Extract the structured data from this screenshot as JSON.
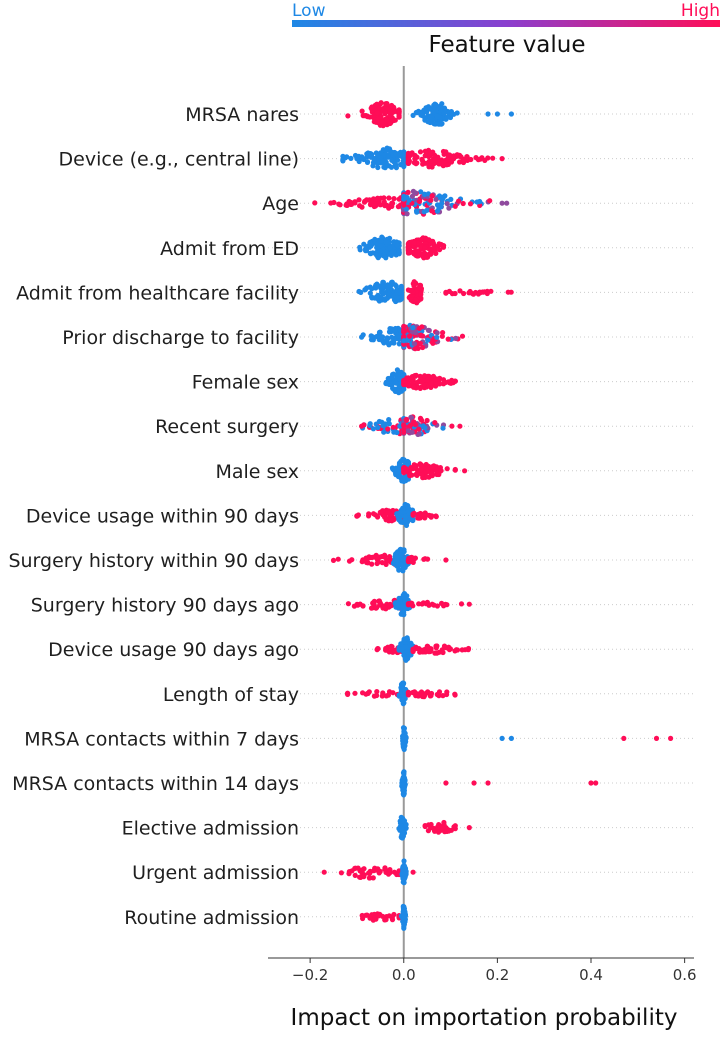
{
  "colors": {
    "low": "#1e88e5",
    "high": "#ff0d57",
    "zero_line": "#999999",
    "grid": "#cccccc"
  },
  "chart_data": {
    "type": "scatter",
    "subtype": "shap-beeswarm",
    "xlabel": "Impact on importation probability",
    "xlim": [
      -0.29,
      0.62
    ],
    "xticks": [
      -0.2,
      0.0,
      0.2,
      0.4,
      0.6
    ],
    "xtick_labels": [
      "−0.2",
      "0.0",
      "0.2",
      "0.4",
      "0.6"
    ],
    "colorbar": {
      "title": "Feature value",
      "low_label": "Low",
      "high_label": "High",
      "placement": "top"
    },
    "features": [
      {
        "name": "MRSA nares",
        "clusters": [
          {
            "xmin": -0.12,
            "xmax": -0.01,
            "center": -0.045,
            "width": 0.022,
            "n": 110,
            "color": "high",
            "h": 1.0
          },
          {
            "xmin": 0.02,
            "xmax": 0.12,
            "center": 0.07,
            "width": 0.02,
            "n": 90,
            "color": "low",
            "h": 1.0
          }
        ],
        "points": [
          {
            "x": 0.18,
            "c": "low"
          },
          {
            "x": 0.2,
            "c": "low"
          },
          {
            "x": 0.23,
            "c": "low"
          }
        ]
      },
      {
        "name": "Device (e.g., central line)",
        "clusters": [
          {
            "xmin": -0.13,
            "xmax": 0.0,
            "center": -0.03,
            "width": 0.04,
            "n": 110,
            "color": "low",
            "h": 0.9
          },
          {
            "xmin": 0.01,
            "xmax": 0.19,
            "center": 0.06,
            "width": 0.05,
            "n": 110,
            "color": "high",
            "h": 0.7
          }
        ],
        "points": [
          {
            "x": 0.21,
            "c": "high"
          }
        ]
      },
      {
        "name": "Age",
        "clusters": [
          {
            "xmin": -0.19,
            "xmax": 0.0,
            "center": -0.03,
            "width": 0.06,
            "n": 90,
            "color": "high",
            "h": 0.5
          },
          {
            "xmin": 0.0,
            "xmax": 0.2,
            "center": 0.03,
            "width": 0.06,
            "n": 150,
            "color": "mix",
            "h": 1.0
          }
        ],
        "points": [
          {
            "x": 0.21,
            "c": "mid"
          },
          {
            "x": 0.22,
            "c": "mid"
          }
        ]
      },
      {
        "name": "Admit from ED",
        "clusters": [
          {
            "xmin": -0.11,
            "xmax": -0.01,
            "center": -0.04,
            "width": 0.025,
            "n": 110,
            "color": "low",
            "h": 1.0
          },
          {
            "xmin": 0.01,
            "xmax": 0.11,
            "center": 0.04,
            "width": 0.025,
            "n": 100,
            "color": "high",
            "h": 0.85
          }
        ],
        "points": []
      },
      {
        "name": "Admit from healthcare facility",
        "clusters": [
          {
            "xmin": -0.1,
            "xmax": -0.005,
            "center": -0.035,
            "width": 0.03,
            "n": 100,
            "color": "low",
            "h": 0.9
          },
          {
            "xmin": 0.01,
            "xmax": 0.045,
            "center": 0.025,
            "width": 0.01,
            "n": 50,
            "color": "high",
            "h": 1.0
          },
          {
            "xmin": 0.09,
            "xmax": 0.23,
            "center": 0.15,
            "width": 0.05,
            "n": 25,
            "color": "high",
            "h": 0.15
          }
        ],
        "points": []
      },
      {
        "name": "Prior discharge to facility",
        "clusters": [
          {
            "xmin": -0.09,
            "xmax": 0.0,
            "center": -0.015,
            "width": 0.03,
            "n": 80,
            "color": "low",
            "h": 0.8
          },
          {
            "xmin": 0.0,
            "xmax": 0.16,
            "center": 0.02,
            "width": 0.04,
            "n": 130,
            "color": "mixh",
            "h": 1.0
          }
        ],
        "points": []
      },
      {
        "name": "Female sex",
        "clusters": [
          {
            "xmin": -0.05,
            "xmax": 0.0,
            "center": -0.012,
            "width": 0.012,
            "n": 70,
            "color": "low",
            "h": 1.0
          },
          {
            "xmin": 0.0,
            "xmax": 0.11,
            "center": 0.04,
            "width": 0.03,
            "n": 90,
            "color": "high",
            "h": 0.6
          }
        ],
        "points": []
      },
      {
        "name": "Recent surgery",
        "clusters": [
          {
            "xmin": -0.09,
            "xmax": 0.0,
            "center": -0.02,
            "width": 0.03,
            "n": 60,
            "color": "mixl",
            "h": 0.7
          },
          {
            "xmin": 0.0,
            "xmax": 0.11,
            "center": 0.02,
            "width": 0.03,
            "n": 80,
            "color": "mixh",
            "h": 0.8
          }
        ],
        "points": [
          {
            "x": -0.09,
            "c": "high"
          },
          {
            "x": 0.12,
            "c": "high"
          }
        ]
      },
      {
        "name": "Male sex",
        "clusters": [
          {
            "xmin": -0.06,
            "xmax": 0.01,
            "center": 0.0,
            "width": 0.012,
            "n": 70,
            "color": "low",
            "h": 1.0
          },
          {
            "xmin": 0.0,
            "xmax": 0.11,
            "center": 0.04,
            "width": 0.03,
            "n": 80,
            "color": "high",
            "h": 0.6
          }
        ],
        "points": [
          {
            "x": 0.13,
            "c": "high"
          }
        ]
      },
      {
        "name": "Device usage within 90 days",
        "clusters": [
          {
            "xmin": -0.1,
            "xmax": 0.0,
            "center": -0.03,
            "width": 0.03,
            "n": 60,
            "color": "high",
            "h": 0.45
          },
          {
            "xmin": -0.03,
            "xmax": 0.03,
            "center": 0.005,
            "width": 0.01,
            "n": 70,
            "color": "low",
            "h": 1.0
          },
          {
            "xmin": 0.02,
            "xmax": 0.09,
            "center": 0.04,
            "width": 0.02,
            "n": 25,
            "color": "high",
            "h": 0.25
          }
        ],
        "points": []
      },
      {
        "name": "Surgery history within 90 days",
        "clusters": [
          {
            "xmin": -0.15,
            "xmax": 0.0,
            "center": -0.04,
            "width": 0.04,
            "n": 60,
            "color": "high",
            "h": 0.45
          },
          {
            "xmin": -0.03,
            "xmax": 0.02,
            "center": -0.005,
            "width": 0.01,
            "n": 70,
            "color": "low",
            "h": 1.0
          },
          {
            "xmin": 0.01,
            "xmax": 0.06,
            "center": 0.025,
            "width": 0.015,
            "n": 15,
            "color": "high",
            "h": 0.25
          }
        ],
        "points": [
          {
            "x": 0.09,
            "c": "high"
          }
        ]
      },
      {
        "name": "Surgery history 90 days ago",
        "clusters": [
          {
            "xmin": -0.14,
            "xmax": -0.005,
            "center": -0.04,
            "width": 0.04,
            "n": 50,
            "color": "high",
            "h": 0.4
          },
          {
            "xmin": -0.02,
            "xmax": 0.02,
            "center": 0.0,
            "width": 0.008,
            "n": 60,
            "color": "low",
            "h": 1.0
          },
          {
            "xmin": 0.01,
            "xmax": 0.14,
            "center": 0.05,
            "width": 0.04,
            "n": 20,
            "color": "high",
            "h": 0.2
          }
        ],
        "points": []
      },
      {
        "name": "Device usage 90 days ago",
        "clusters": [
          {
            "xmin": -0.06,
            "xmax": 0.0,
            "center": -0.02,
            "width": 0.02,
            "n": 25,
            "color": "high",
            "h": 0.3
          },
          {
            "xmin": -0.01,
            "xmax": 0.03,
            "center": 0.005,
            "width": 0.008,
            "n": 70,
            "color": "low",
            "h": 1.0
          },
          {
            "xmin": 0.02,
            "xmax": 0.14,
            "center": 0.06,
            "width": 0.035,
            "n": 50,
            "color": "high",
            "h": 0.35
          }
        ],
        "points": []
      },
      {
        "name": "Length of stay",
        "clusters": [
          {
            "xmin": -0.12,
            "xmax": -0.005,
            "center": -0.04,
            "width": 0.04,
            "n": 25,
            "color": "high",
            "h": 0.25
          },
          {
            "xmin": -0.015,
            "xmax": 0.01,
            "center": -0.002,
            "width": 0.004,
            "n": 40,
            "color": "low",
            "h": 1.0
          },
          {
            "xmin": 0.01,
            "xmax": 0.14,
            "center": 0.05,
            "width": 0.04,
            "n": 30,
            "color": "high",
            "h": 0.25
          }
        ],
        "points": []
      },
      {
        "name": "MRSA contacts within 7 days",
        "clusters": [
          {
            "xmin": -0.005,
            "xmax": 0.005,
            "center": 0.0,
            "width": 0.002,
            "n": 50,
            "color": "low",
            "h": 1.0
          }
        ],
        "points": [
          {
            "x": 0.21,
            "c": "low"
          },
          {
            "x": 0.23,
            "c": "low"
          },
          {
            "x": 0.47,
            "c": "high"
          },
          {
            "x": 0.54,
            "c": "high"
          },
          {
            "x": 0.57,
            "c": "high"
          }
        ]
      },
      {
        "name": "MRSA contacts within 14 days",
        "clusters": [
          {
            "xmin": -0.005,
            "xmax": 0.005,
            "center": 0.0,
            "width": 0.002,
            "n": 50,
            "color": "low",
            "h": 1.0
          }
        ],
        "points": [
          {
            "x": 0.09,
            "c": "high"
          },
          {
            "x": 0.15,
            "c": "high"
          },
          {
            "x": 0.18,
            "c": "high"
          },
          {
            "x": 0.4,
            "c": "high"
          },
          {
            "x": 0.41,
            "c": "high"
          }
        ]
      },
      {
        "name": "Elective admission",
        "clusters": [
          {
            "xmin": -0.015,
            "xmax": 0.005,
            "center": -0.003,
            "width": 0.004,
            "n": 45,
            "color": "low",
            "h": 1.0
          },
          {
            "xmin": 0.045,
            "xmax": 0.11,
            "center": 0.075,
            "width": 0.02,
            "n": 35,
            "color": "high",
            "h": 0.5
          }
        ],
        "points": [
          {
            "x": 0.14,
            "c": "high"
          }
        ]
      },
      {
        "name": "Urgent admission",
        "clusters": [
          {
            "xmin": -0.15,
            "xmax": -0.01,
            "center": -0.07,
            "width": 0.04,
            "n": 45,
            "color": "high",
            "h": 0.5
          },
          {
            "xmin": -0.005,
            "xmax": 0.005,
            "center": 0.0,
            "width": 0.002,
            "n": 40,
            "color": "low",
            "h": 1.0
          }
        ],
        "points": [
          {
            "x": -0.17,
            "c": "high"
          },
          {
            "x": -0.02,
            "c": "high"
          },
          {
            "x": 0.02,
            "c": "high"
          }
        ]
      },
      {
        "name": "Routine admission",
        "clusters": [
          {
            "xmin": -0.1,
            "xmax": -0.01,
            "center": -0.05,
            "width": 0.03,
            "n": 30,
            "color": "high",
            "h": 0.35
          },
          {
            "xmin": -0.005,
            "xmax": 0.005,
            "center": 0.0,
            "width": 0.002,
            "n": 40,
            "color": "low",
            "h": 1.0
          }
        ],
        "points": []
      }
    ]
  }
}
